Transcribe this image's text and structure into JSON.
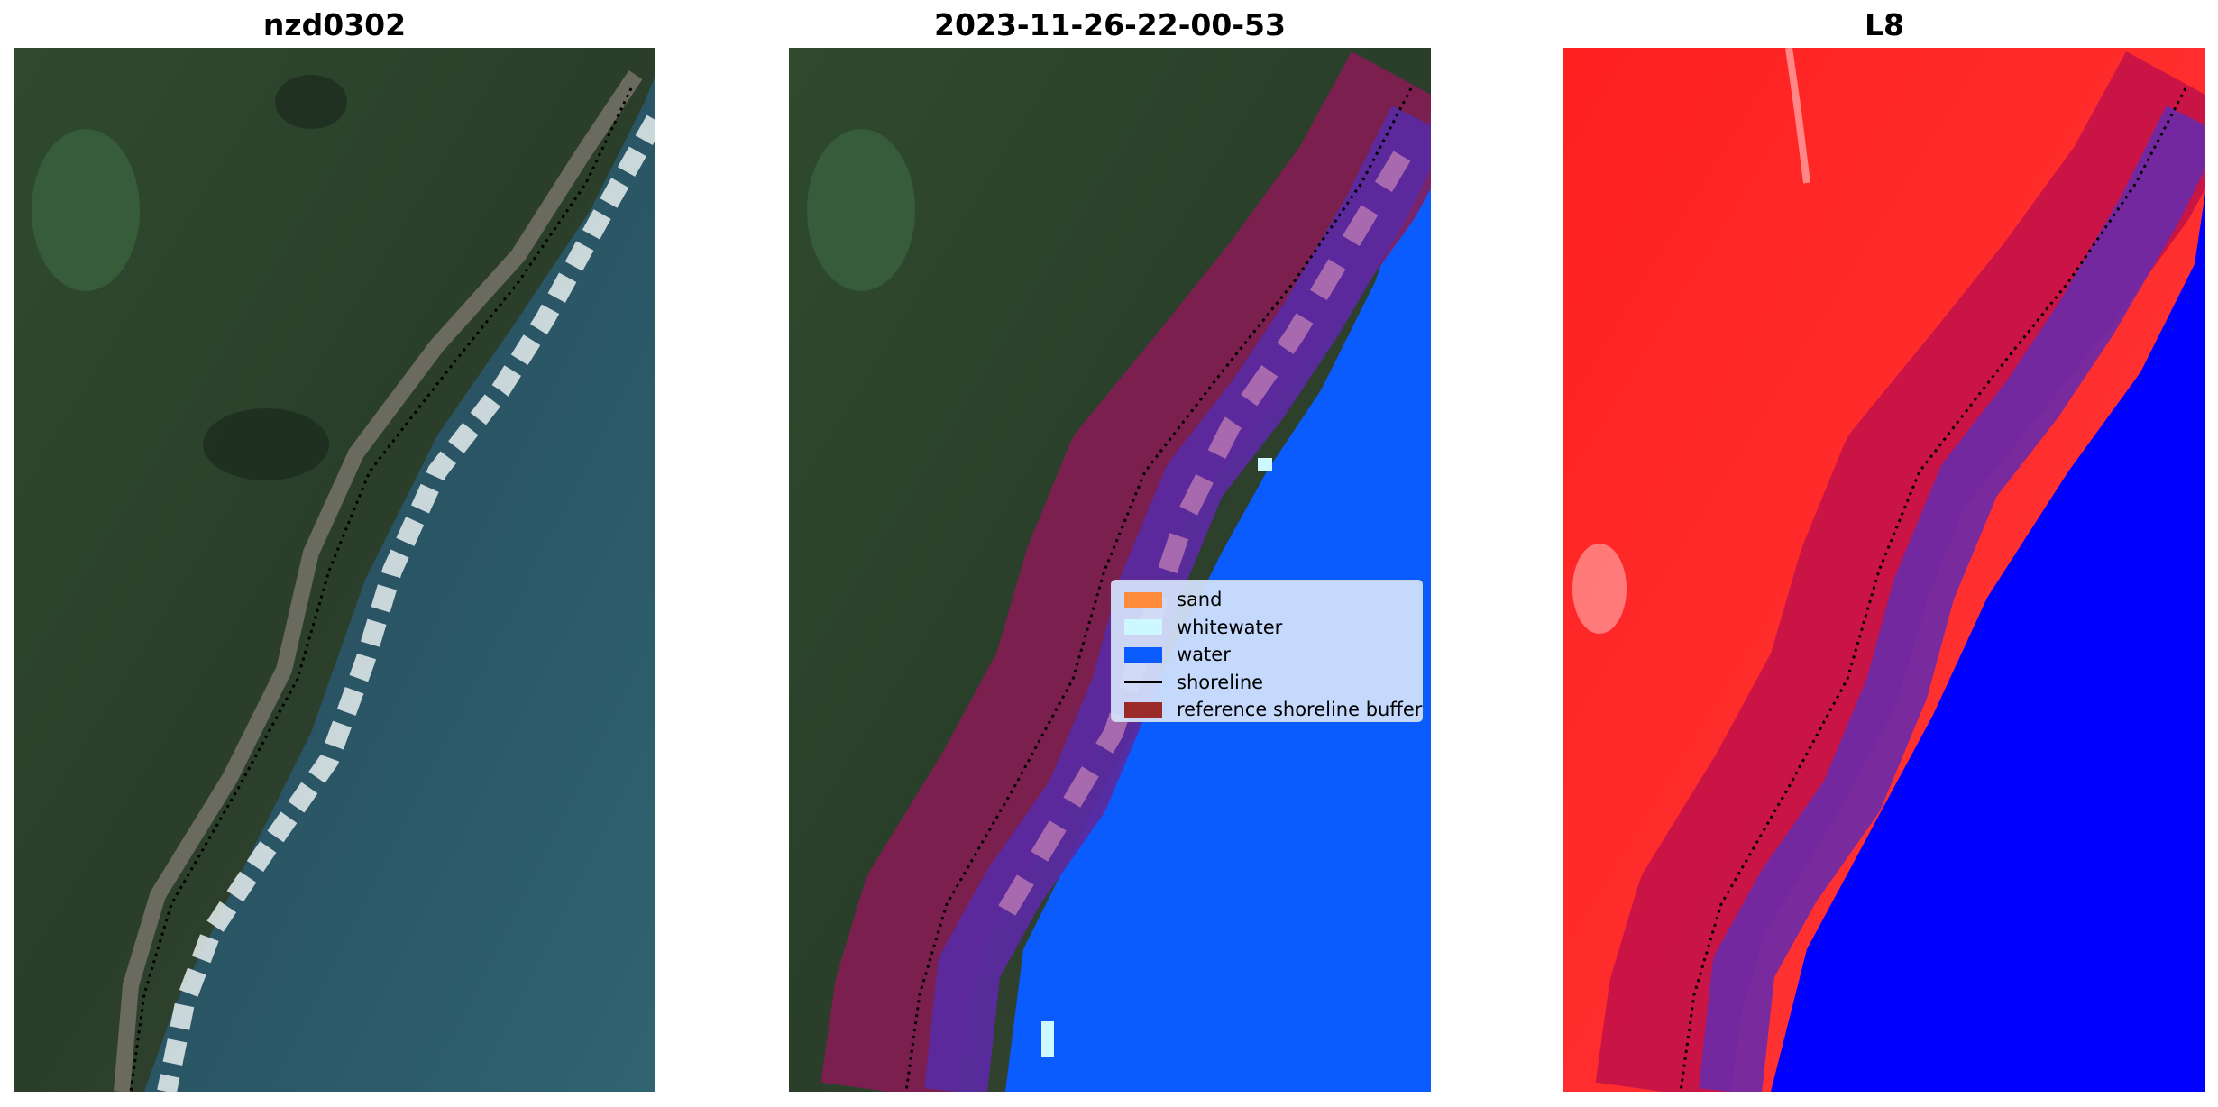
{
  "panels": [
    {
      "title": "nzd0302"
    },
    {
      "title": "2023-11-26-22-00-53"
    },
    {
      "title": "L8"
    }
  ],
  "legend": {
    "items": [
      {
        "label": "sand",
        "color": "#ff8c3c"
      },
      {
        "label": "whitewater",
        "color": "#cdf8ff"
      },
      {
        "label": "water",
        "color": "#0a5cff"
      },
      {
        "label": "shoreline",
        "color": "#000000"
      },
      {
        "label": "reference shoreline buffer",
        "color": "#9b2a2a"
      }
    ]
  },
  "colors": {
    "land": "#2b3a2a",
    "sea": "#2c5a6a",
    "surf": "#e8f0f0",
    "classified_water": "#0a5cff",
    "buffer": "#8a1a55",
    "class_overlay": "#5a2aa0",
    "index_land": "#ff1515",
    "index_water": "#0000ff"
  }
}
